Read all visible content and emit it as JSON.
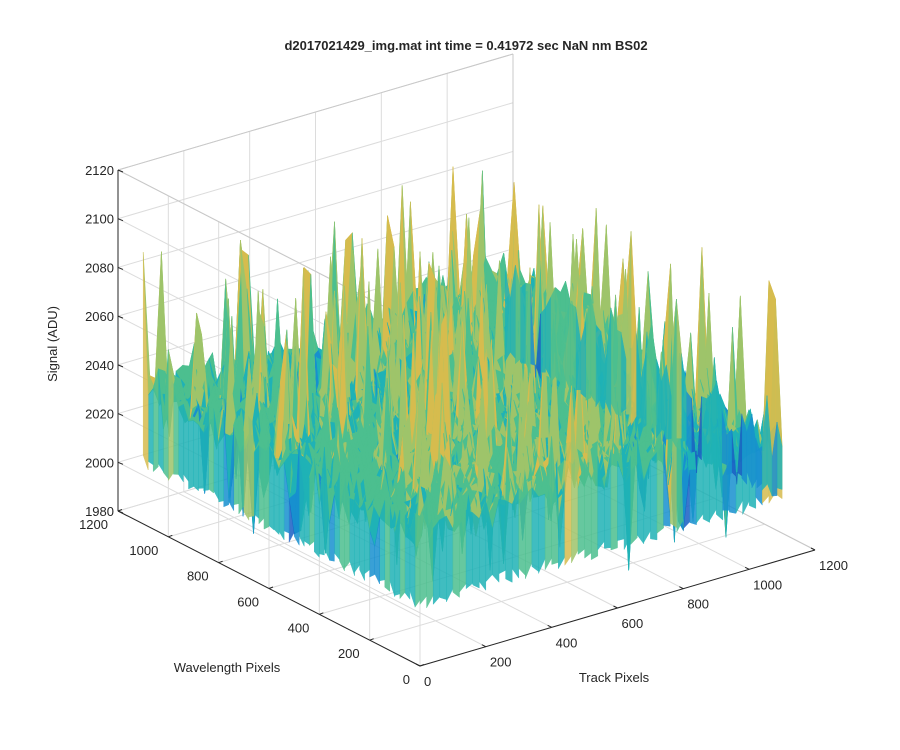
{
  "chart_data": {
    "type": "surface",
    "title": "d2017021429_img.mat int time = 0.41972 sec  NaN nm BS02",
    "xlabel": "Track Pixels",
    "ylabel": "Wavelength Pixels",
    "zlabel": "Signal (ADU)",
    "xlim": [
      0,
      1200
    ],
    "ylim": [
      0,
      1200
    ],
    "zlim": [
      1980,
      2120
    ],
    "x_ticks": [
      0,
      200,
      400,
      600,
      800,
      1000,
      1200
    ],
    "y_ticks": [
      0,
      200,
      400,
      600,
      800,
      1000,
      1200
    ],
    "z_ticks": [
      1980,
      2000,
      2020,
      2040,
      2060,
      2080,
      2100,
      2120
    ],
    "x_tick_labels": [
      "0",
      "200",
      "400",
      "600",
      "800",
      "1000",
      "1200"
    ],
    "y_tick_labels": [
      "0",
      "200",
      "400",
      "600",
      "800",
      "1000",
      "1200"
    ],
    "z_tick_labels": [
      "1980",
      "2000",
      "2020",
      "2040",
      "2060",
      "2080",
      "2100",
      "2120"
    ],
    "data_extent": {
      "x": [
        0,
        1100
      ],
      "y": [
        0,
        1100
      ]
    },
    "signal_mean": 2035,
    "signal_range": [
      1995,
      2110
    ],
    "grid": true,
    "colormap": [
      "#1a5fc4",
      "#1790cf",
      "#1fb2b6",
      "#4cbf8f",
      "#9ec46a",
      "#d6bc4e"
    ]
  }
}
